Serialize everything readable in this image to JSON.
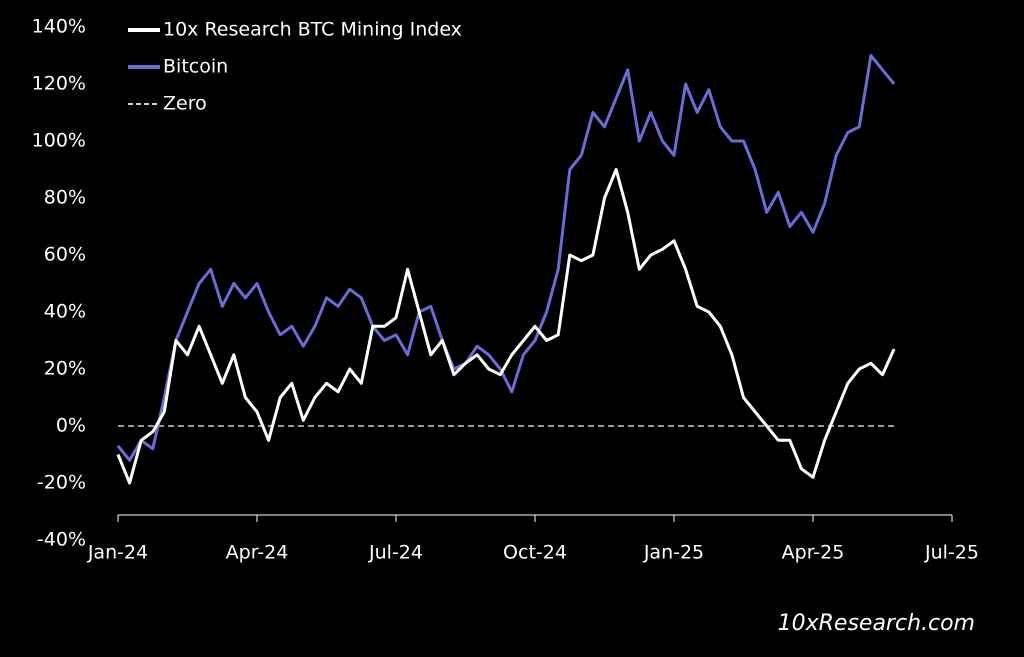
{
  "chart_data": {
    "type": "line",
    "x": [
      0,
      0.25,
      0.5,
      0.75,
      1,
      1.25,
      1.5,
      1.75,
      2,
      2.25,
      2.5,
      2.75,
      3,
      3.25,
      3.5,
      3.75,
      4,
      4.25,
      4.5,
      4.75,
      5,
      5.25,
      5.5,
      5.75,
      6,
      6.25,
      6.5,
      6.75,
      7,
      7.25,
      7.5,
      7.75,
      8,
      8.25,
      8.5,
      8.75,
      9,
      9.25,
      9.5,
      9.75,
      10,
      10.25,
      10.5,
      10.75,
      11,
      11.25,
      11.5,
      11.75,
      12,
      12.25,
      12.5,
      12.75,
      13,
      13.25,
      13.5,
      13.75,
      14,
      14.25,
      14.5,
      14.75,
      15,
      15.25,
      15.5,
      15.75,
      16,
      16.25,
      16.5,
      16.75
    ],
    "series": [
      {
        "name": "10x Research BTC Mining Index",
        "color": "#ffffff",
        "values": [
          -10,
          -20,
          -5,
          -2,
          5,
          30,
          25,
          35,
          25,
          15,
          25,
          10,
          5,
          -5,
          10,
          15,
          2,
          10,
          15,
          12,
          20,
          15,
          35,
          35,
          38,
          55,
          40,
          25,
          30,
          18,
          22,
          25,
          20,
          18,
          25,
          30,
          35,
          30,
          32,
          60,
          58,
          60,
          80,
          90,
          75,
          55,
          60,
          62,
          65,
          55,
          42,
          40,
          35,
          25,
          10,
          5,
          0,
          -5,
          -5,
          -15,
          -18,
          -5,
          5,
          15,
          20,
          22,
          18,
          27
        ]
      },
      {
        "name": "Bitcoin",
        "color": "#6b6bd6",
        "values": [
          -7,
          -12,
          -5,
          -8,
          10,
          30,
          40,
          50,
          55,
          42,
          50,
          45,
          50,
          40,
          32,
          35,
          28,
          35,
          45,
          42,
          48,
          45,
          35,
          30,
          32,
          25,
          40,
          42,
          30,
          20,
          22,
          28,
          25,
          20,
          12,
          25,
          30,
          40,
          55,
          90,
          95,
          110,
          105,
          115,
          125,
          100,
          110,
          100,
          95,
          120,
          110,
          118,
          105,
          100,
          100,
          90,
          75,
          82,
          70,
          75,
          68,
          78,
          95,
          103,
          105,
          130,
          125,
          120
        ]
      }
    ],
    "reference_line": {
      "name": "Zero",
      "value": 0,
      "color": "#cccccc"
    },
    "xlim": [
      0,
      18
    ],
    "xticks": [
      {
        "value": 0,
        "label": "Jan-24"
      },
      {
        "value": 3,
        "label": "Apr-24"
      },
      {
        "value": 6,
        "label": "Jul-24"
      },
      {
        "value": 9,
        "label": "Oct-24"
      },
      {
        "value": 12,
        "label": "Jan-25"
      },
      {
        "value": 15,
        "label": "Apr-25"
      },
      {
        "value": 18,
        "label": "Jul-25"
      }
    ],
    "ylim": [
      -40,
      140
    ],
    "yticks": [
      {
        "value": -40,
        "label": "-40%"
      },
      {
        "value": -20,
        "label": "-20%"
      },
      {
        "value": 0,
        "label": "0%"
      },
      {
        "value": 20,
        "label": "20%"
      },
      {
        "value": 40,
        "label": "40%"
      },
      {
        "value": 60,
        "label": "60%"
      },
      {
        "value": 80,
        "label": "80%"
      },
      {
        "value": 100,
        "label": "100%"
      },
      {
        "value": 120,
        "label": "120%"
      },
      {
        "value": 140,
        "label": "140%"
      }
    ],
    "legend": "top-left",
    "watermark": "10xResearch.com"
  }
}
